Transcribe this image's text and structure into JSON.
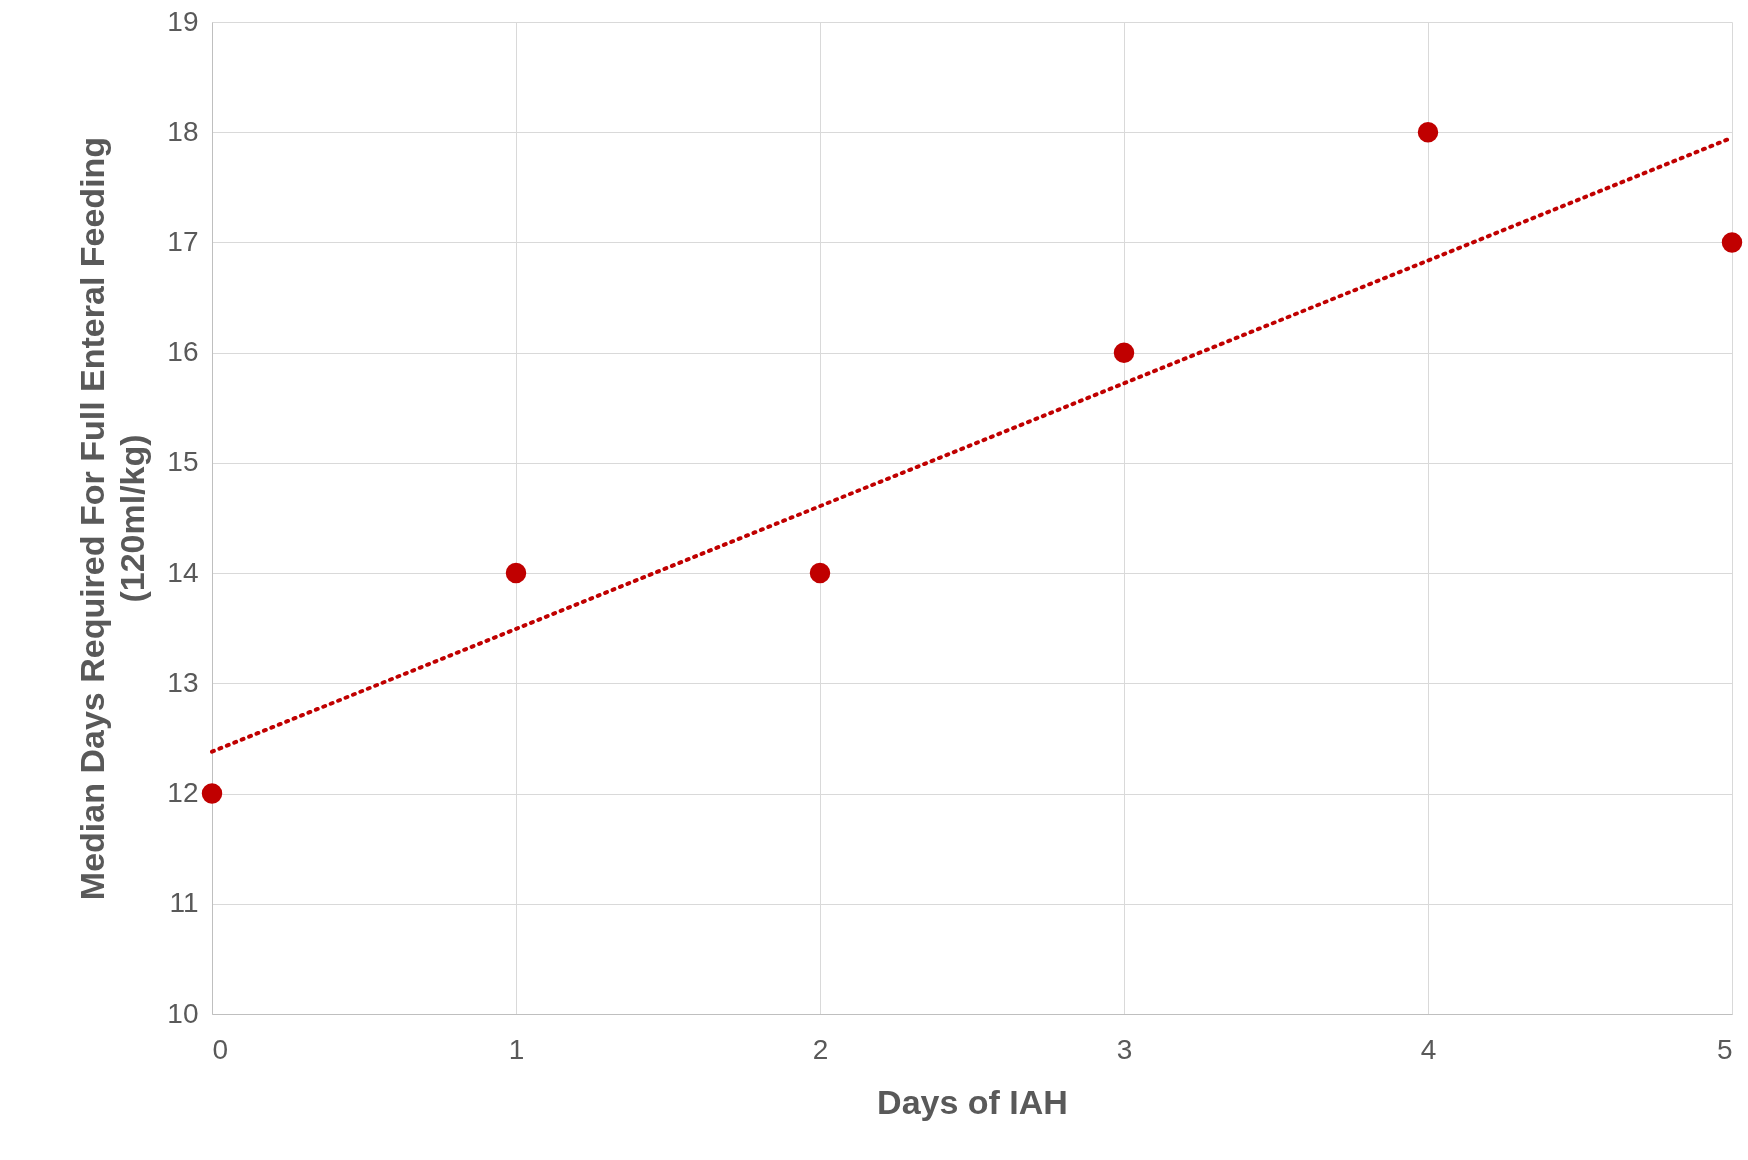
{
  "chart_data": {
    "type": "scatter",
    "xlabel": "Days of IAH",
    "ylabel": "Median Days Required For Full Enteral Feeding\n(120ml/kg)",
    "x": [
      0,
      1,
      2,
      3,
      4,
      5
    ],
    "series": [
      {
        "color": "#c00000",
        "values": [
          12,
          14,
          14,
          16,
          18,
          17
        ],
        "marker": "circle"
      },
      {
        "type": "line",
        "x": [
          0,
          5
        ],
        "color": "#c00000",
        "values": [
          12.38,
          17.95
        ],
        "line_style": "dotted",
        "marker": "none"
      }
    ],
    "xlim": [
      0,
      5
    ],
    "xticks": [
      0,
      1,
      2,
      3,
      4,
      5
    ],
    "ylim": [
      10,
      19
    ],
    "yticks": [
      10,
      11,
      12,
      13,
      14,
      15,
      16,
      17,
      18,
      19
    ],
    "grid": true
  }
}
